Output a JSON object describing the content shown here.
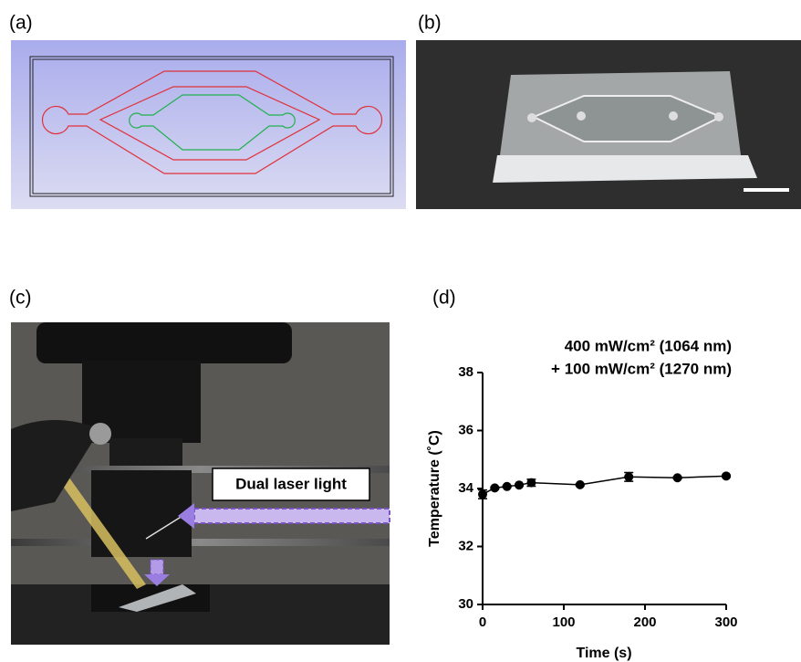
{
  "panels": {
    "a": "(a)",
    "b": "(b)",
    "c": "(c)",
    "d": "(d)"
  },
  "annotation": "Dual laser light",
  "chart_data": {
    "type": "line",
    "title_lines": [
      "400 mW/cm² (1064 nm)",
      "+ 100 mW/cm² (1270 nm)"
    ],
    "x_label": "Time (s)",
    "y_label": "Temperature (˚C)",
    "series": [
      {
        "color": "#000000",
        "x": [
          0,
          15,
          30,
          45,
          60,
          120,
          180,
          240,
          300
        ],
        "values": [
          33.8,
          34.02,
          34.07,
          34.12,
          34.2,
          34.13,
          34.4,
          34.37,
          34.43
        ],
        "errors": [
          0.15,
          0.03,
          0.03,
          0.03,
          0.12,
          0.03,
          0.15,
          0.03,
          0.03
        ]
      }
    ],
    "xlim": [
      0,
      300
    ],
    "xticks": [
      0,
      100,
      200,
      300
    ],
    "ylim": [
      30,
      38
    ],
    "yticks": [
      30,
      32,
      34,
      36,
      38
    ]
  }
}
